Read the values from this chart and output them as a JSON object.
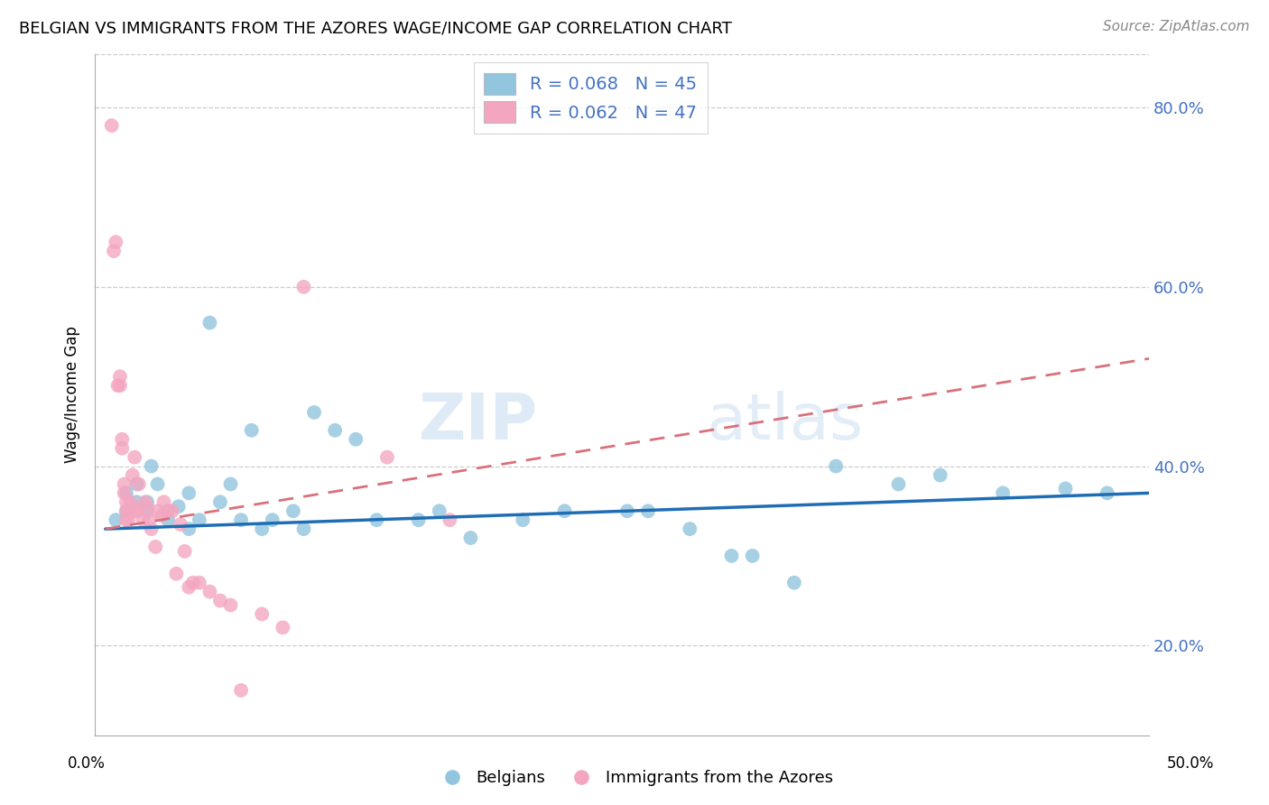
{
  "title": "BELGIAN VS IMMIGRANTS FROM THE AZORES WAGE/INCOME GAP CORRELATION CHART",
  "source": "Source: ZipAtlas.com",
  "ylabel": "Wage/Income Gap",
  "y_ticks": [
    0.2,
    0.4,
    0.6,
    0.8
  ],
  "y_tick_labels": [
    "20.0%",
    "40.0%",
    "60.0%",
    "80.0%"
  ],
  "x_ticks": [
    0.0,
    0.1,
    0.2,
    0.3,
    0.4,
    0.5
  ],
  "xlim": [
    -0.005,
    0.5
  ],
  "ylim": [
    0.1,
    0.86
  ],
  "legend_label_blue": "R = 0.068   N = 45",
  "legend_label_pink": "R = 0.062   N = 47",
  "bottom_legend_blue": "Belgians",
  "bottom_legend_pink": "Immigrants from the Azores",
  "blue_color": "#92c5de",
  "pink_color": "#f4a6c0",
  "blue_line_color": "#1f6db5",
  "pink_line_color": "#d9707a",
  "blue_x": [
    0.005,
    0.01,
    0.01,
    0.015,
    0.015,
    0.02,
    0.02,
    0.022,
    0.025,
    0.03,
    0.03,
    0.035,
    0.04,
    0.04,
    0.045,
    0.05,
    0.055,
    0.06,
    0.065,
    0.07,
    0.075,
    0.08,
    0.09,
    0.095,
    0.1,
    0.11,
    0.12,
    0.13,
    0.15,
    0.16,
    0.175,
    0.2,
    0.22,
    0.25,
    0.26,
    0.28,
    0.3,
    0.31,
    0.33,
    0.35,
    0.38,
    0.4,
    0.43,
    0.46,
    0.48
  ],
  "blue_y": [
    0.34,
    0.35,
    0.37,
    0.36,
    0.38,
    0.36,
    0.35,
    0.4,
    0.38,
    0.35,
    0.34,
    0.355,
    0.33,
    0.37,
    0.34,
    0.56,
    0.36,
    0.38,
    0.34,
    0.44,
    0.33,
    0.34,
    0.35,
    0.33,
    0.46,
    0.44,
    0.43,
    0.34,
    0.34,
    0.35,
    0.32,
    0.34,
    0.35,
    0.35,
    0.35,
    0.33,
    0.3,
    0.3,
    0.27,
    0.4,
    0.38,
    0.39,
    0.37,
    0.375,
    0.37
  ],
  "pink_x": [
    0.003,
    0.004,
    0.005,
    0.006,
    0.007,
    0.007,
    0.008,
    0.008,
    0.009,
    0.009,
    0.01,
    0.01,
    0.01,
    0.011,
    0.012,
    0.012,
    0.013,
    0.014,
    0.015,
    0.015,
    0.016,
    0.018,
    0.019,
    0.02,
    0.021,
    0.022,
    0.024,
    0.025,
    0.027,
    0.028,
    0.03,
    0.032,
    0.034,
    0.036,
    0.038,
    0.04,
    0.042,
    0.045,
    0.05,
    0.055,
    0.06,
    0.065,
    0.075,
    0.085,
    0.095,
    0.135,
    0.165
  ],
  "pink_y": [
    0.78,
    0.64,
    0.65,
    0.49,
    0.49,
    0.5,
    0.42,
    0.43,
    0.38,
    0.37,
    0.34,
    0.35,
    0.36,
    0.34,
    0.35,
    0.36,
    0.39,
    0.41,
    0.35,
    0.35,
    0.38,
    0.34,
    0.36,
    0.355,
    0.34,
    0.33,
    0.31,
    0.35,
    0.345,
    0.36,
    0.35,
    0.35,
    0.28,
    0.335,
    0.305,
    0.265,
    0.27,
    0.27,
    0.26,
    0.25,
    0.245,
    0.15,
    0.235,
    0.22,
    0.6,
    0.41,
    0.34
  ],
  "blue_trend_x": [
    0.0,
    0.5
  ],
  "blue_trend_y": [
    0.33,
    0.37
  ],
  "pink_trend_x": [
    0.0,
    0.5
  ],
  "pink_trend_y": [
    0.33,
    0.52
  ]
}
